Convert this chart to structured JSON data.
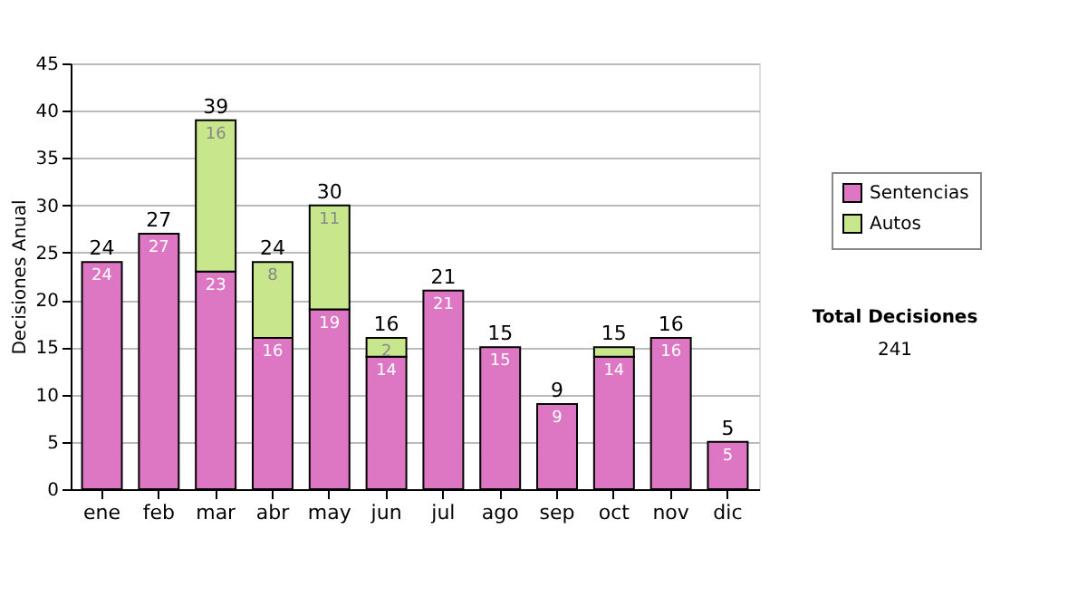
{
  "chart_data": {
    "type": "bar",
    "stacked": true,
    "ylabel": "Decisiones Anual",
    "categories": [
      "ene",
      "feb",
      "mar",
      "abr",
      "may",
      "jun",
      "jul",
      "ago",
      "sep",
      "oct",
      "nov",
      "dic"
    ],
    "series": [
      {
        "name": "Sentencias",
        "color": "#dd77c4",
        "values": [
          24,
          27,
          23,
          16,
          19,
          14,
          21,
          15,
          9,
          14,
          16,
          5
        ],
        "value_labels": [
          "24",
          "27",
          "23",
          "16",
          "19",
          "14",
          "21",
          "15",
          "9",
          "14",
          "16",
          "5"
        ]
      },
      {
        "name": "Autos",
        "color": "#c8e68c",
        "values": [
          null,
          null,
          16,
          8,
          11,
          2,
          null,
          null,
          null,
          1,
          null,
          null
        ],
        "value_labels": [
          null,
          null,
          "16",
          "8",
          "11",
          "2",
          null,
          null,
          null,
          null,
          null,
          null
        ]
      }
    ],
    "totals": [
      "24",
      "27",
      "39",
      "24",
      "30",
      "16",
      "21",
      "15",
      "9",
      "15",
      "16",
      "5"
    ],
    "ylim": [
      0,
      45
    ],
    "yticks": [
      0,
      5,
      10,
      15,
      20,
      25,
      30,
      35,
      40,
      45
    ],
    "grid": "y",
    "legend": "right",
    "annotations": [
      "Total Decisiones",
      "241"
    ]
  }
}
